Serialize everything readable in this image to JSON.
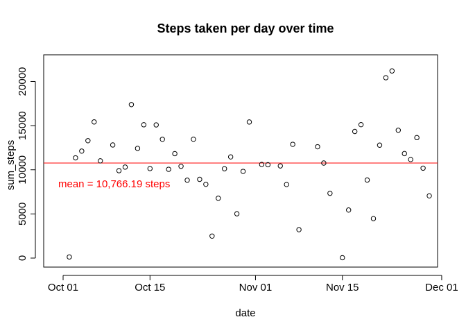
{
  "chart_data": {
    "type": "scatter",
    "title": "Steps taken per day over time",
    "xlabel": "date",
    "ylabel": "sum_steps",
    "grid": false,
    "legend": "none",
    "xlim": [
      "2012-10-01",
      "2012-11-30"
    ],
    "ylim": [
      0,
      22000
    ],
    "x_ticks": [
      {
        "date": "2012-10-01",
        "label": "Oct 01"
      },
      {
        "date": "2012-10-15",
        "label": "Oct 15"
      },
      {
        "date": "2012-11-01",
        "label": "Nov 01"
      },
      {
        "date": "2012-11-15",
        "label": "Nov 15"
      },
      {
        "date": "2012-12-01",
        "label": "Dec 01"
      }
    ],
    "y_ticks": [
      {
        "value": 0,
        "label": "0"
      },
      {
        "value": 5000,
        "label": "5000"
      },
      {
        "value": 10000,
        "label": "10000"
      },
      {
        "value": 15000,
        "label": "15000"
      },
      {
        "value": 20000,
        "label": "20000"
      }
    ],
    "hline": {
      "value": 10766.19,
      "color": "#ff0000",
      "label": "mean = 10,766.19 steps"
    },
    "point_color": "#000000",
    "line_color": "#ff0000",
    "series": [
      {
        "x": [
          "2012-10-02",
          "2012-10-03",
          "2012-10-04",
          "2012-10-05",
          "2012-10-06",
          "2012-10-07",
          "2012-10-09",
          "2012-10-10",
          "2012-10-11",
          "2012-10-12",
          "2012-10-13",
          "2012-10-14",
          "2012-10-15",
          "2012-10-16",
          "2012-10-17",
          "2012-10-18",
          "2012-10-19",
          "2012-10-20",
          "2012-10-21",
          "2012-10-22",
          "2012-10-23",
          "2012-10-24",
          "2012-10-25",
          "2012-10-26",
          "2012-10-27",
          "2012-10-28",
          "2012-10-29",
          "2012-10-30",
          "2012-10-31",
          "2012-11-02",
          "2012-11-03",
          "2012-11-05",
          "2012-11-06",
          "2012-11-07",
          "2012-11-08",
          "2012-11-11",
          "2012-11-12",
          "2012-11-13",
          "2012-11-15",
          "2012-11-16",
          "2012-11-17",
          "2012-11-18",
          "2012-11-19",
          "2012-11-20",
          "2012-11-21",
          "2012-11-22",
          "2012-11-23",
          "2012-11-24",
          "2012-11-25",
          "2012-11-26",
          "2012-11-27",
          "2012-11-28",
          "2012-11-29"
        ],
        "y": [
          126,
          11352,
          12116,
          13294,
          15420,
          11015,
          12811,
          9900,
          10304,
          17382,
          12426,
          15098,
          10139,
          15084,
          13452,
          10056,
          11829,
          10395,
          8821,
          13460,
          8918,
          8355,
          2492,
          6778,
          10119,
          11458,
          5018,
          9819,
          15414,
          10600,
          10571,
          10439,
          8334,
          12883,
          3219,
          12608,
          10765,
          7336,
          41,
          5441,
          14339,
          15110,
          8841,
          4472,
          12787,
          20427,
          21194,
          14478,
          11834,
          11162,
          13646,
          10183,
          7047
        ]
      }
    ]
  }
}
